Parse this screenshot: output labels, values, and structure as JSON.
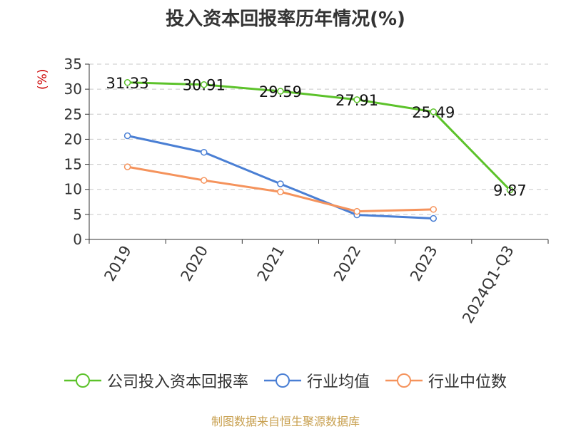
{
  "chart_data": {
    "type": "line",
    "title": "投入资本回报率历年情况(%)",
    "ylabel": "(%)",
    "categories": [
      "2019",
      "2020",
      "2021",
      "2022",
      "2023",
      "2024Q1-Q3"
    ],
    "ylim": [
      0,
      35
    ],
    "yticks": [
      0,
      5,
      10,
      15,
      20,
      25,
      30,
      35
    ],
    "grid": "horizontal-dashed",
    "legend_position": "bottom",
    "series": [
      {
        "name": "公司投入资本回报率",
        "color": "#5cc22a",
        "values": [
          31.33,
          30.91,
          29.59,
          27.91,
          25.49,
          9.87
        ],
        "labels": [
          "31.33",
          "30.91",
          "29.59",
          "27.91",
          "25.49",
          "9.87"
        ]
      },
      {
        "name": "行业均值",
        "color": "#4a7fd4",
        "values": [
          20.7,
          17.4,
          11.1,
          4.9,
          4.2,
          null
        ]
      },
      {
        "name": "行业中位数",
        "color": "#f5935c",
        "values": [
          14.5,
          11.8,
          9.5,
          5.6,
          6.0,
          null
        ]
      }
    ]
  },
  "source": "制图数据来自恒生聚源数据库"
}
